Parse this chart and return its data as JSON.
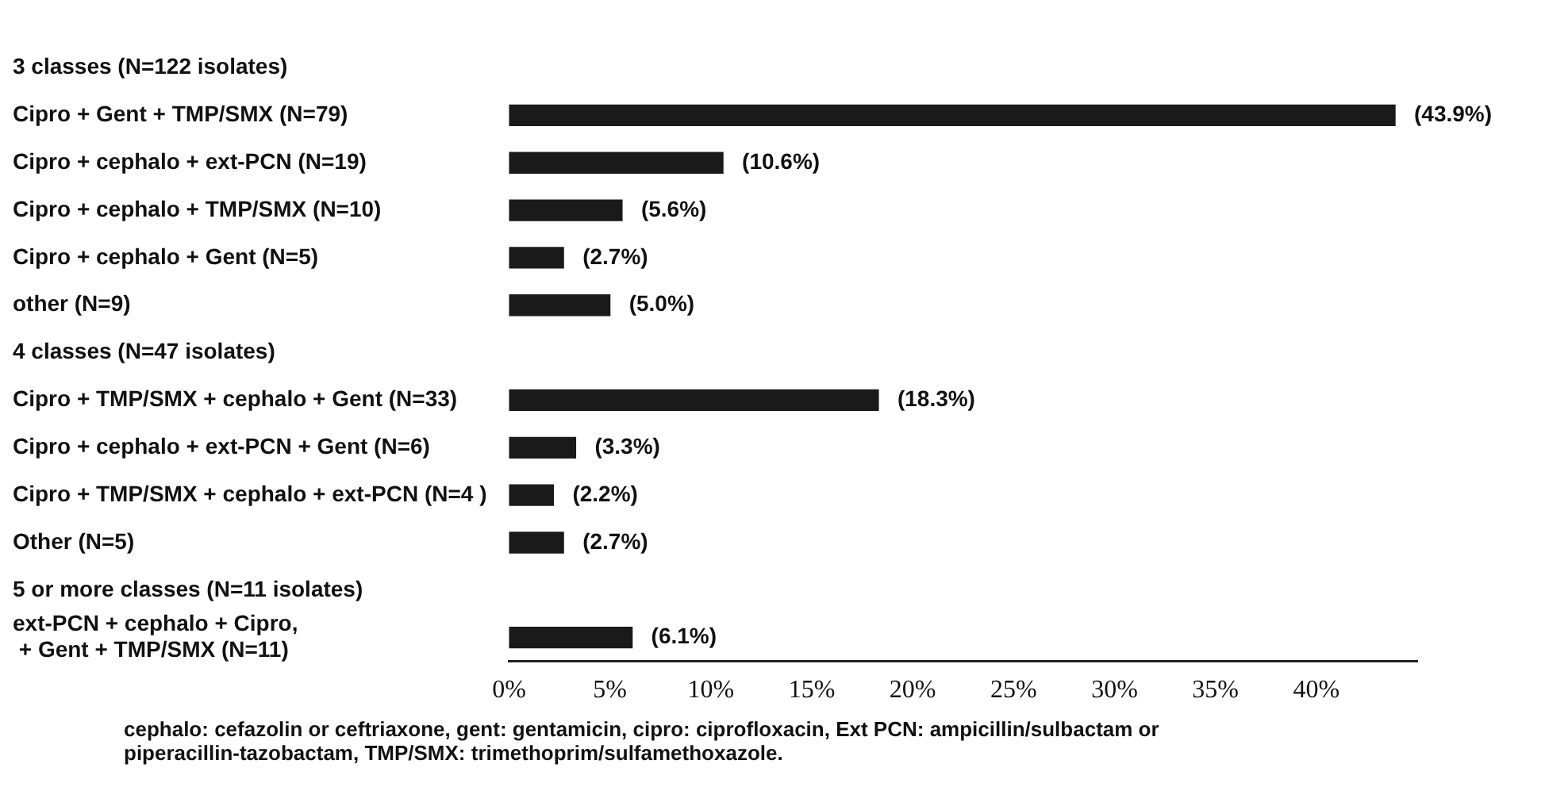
{
  "chart_data": {
    "type": "bar",
    "orientation": "horizontal",
    "categories": [
      "3 classes (N=122 isolates)",
      "Cipro + Gent + TMP/SMX (N=79)",
      "Cipro + cephalo + ext-PCN (N=19)",
      "Cipro + cephalo + TMP/SMX (N=10)",
      "Cipro + cephalo + Gent (N=5)",
      "other (N=9)",
      "4 classes (N=47 isolates)",
      "Cipro + TMP/SMX + cephalo + Gent (N=33)",
      "Cipro + cephalo + ext-PCN + Gent (N=6)",
      "Cipro + TMP/SMX + cephalo + ext-PCN (N=4 )",
      "Other (N=5)",
      "5 or more classes (N=11 isolates)",
      "ext-PCN + cephalo + Cipro,\n + Gent + TMP/SMX (N=11)"
    ],
    "values": [
      null,
      43.9,
      10.6,
      5.6,
      2.7,
      5.0,
      null,
      18.3,
      3.3,
      2.2,
      2.7,
      null,
      6.1
    ],
    "value_labels": [
      null,
      "(43.9%)",
      "(10.6%)",
      "(5.6%)",
      "(2.7%)",
      "(5.0%)",
      null,
      "(18.3%)",
      "(3.3%)",
      "(2.2%)",
      "(2.7%)",
      null,
      "(6.1%)"
    ],
    "color": "#1a1a1a",
    "xlim": [
      0,
      45
    ],
    "xticks": [
      {
        "value": 0,
        "label": "0%"
      },
      {
        "value": 5,
        "label": "5%"
      },
      {
        "value": 10,
        "label": "10%"
      },
      {
        "value": 15,
        "label": "15%"
      },
      {
        "value": 20,
        "label": "20%"
      },
      {
        "value": 25,
        "label": "25%"
      },
      {
        "value": 30,
        "label": "30%"
      },
      {
        "value": 35,
        "label": "35%"
      },
      {
        "value": 40,
        "label": "40%"
      }
    ],
    "grid": false,
    "legend": false,
    "annotations": [
      "cephalo: cefazolin or ceftriaxone, gent:  gentamicin, cipro: ciprofloxacin,  Ext PCN: ampicillin/sulbactam or piperacillin-tazobactam, TMP/SMX: trimethoprim/sulfamethoxazole."
    ]
  }
}
